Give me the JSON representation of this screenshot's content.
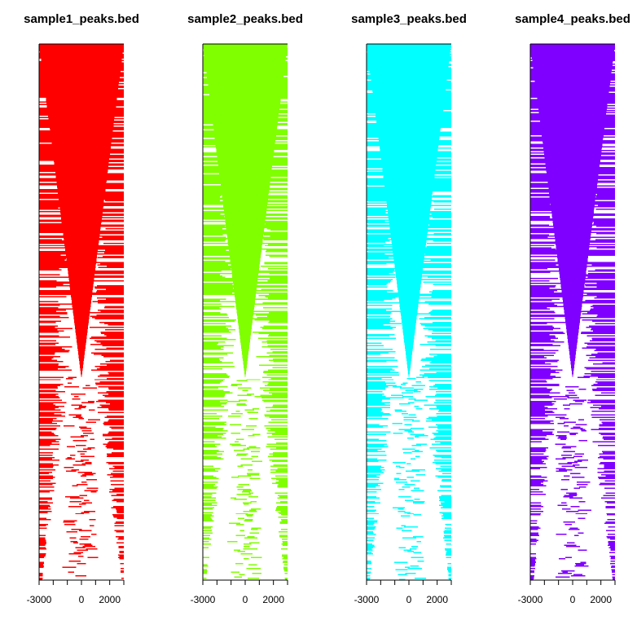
{
  "chart_data": [
    {
      "type": "heatmap",
      "title": "sample1_peaks.bed",
      "color": "#ff0000",
      "xlim": [
        -3000,
        3000
      ],
      "xticks": [
        -3000,
        -2000,
        -1000,
        0,
        1000,
        2000,
        3000
      ],
      "xtick_labels": [
        "-3000",
        "",
        "",
        "0",
        "",
        "2000",
        ""
      ],
      "row_count": 440,
      "grid": false
    },
    {
      "type": "heatmap",
      "title": "sample2_peaks.bed",
      "color": "#80ff00",
      "xlim": [
        -3000,
        3000
      ],
      "xticks": [
        -3000,
        -2000,
        -1000,
        0,
        1000,
        2000,
        3000
      ],
      "xtick_labels": [
        "-3000",
        "",
        "",
        "0",
        "",
        "2000",
        ""
      ],
      "row_count": 440,
      "grid": false
    },
    {
      "type": "heatmap",
      "title": "sample3_peaks.bed",
      "color": "#00ffff",
      "xlim": [
        -3000,
        3000
      ],
      "xticks": [
        -3000,
        -2000,
        -1000,
        0,
        1000,
        2000,
        3000
      ],
      "xtick_labels": [
        "-3000",
        "",
        "",
        "0",
        "",
        "2000",
        ""
      ],
      "row_count": 440,
      "grid": false
    },
    {
      "type": "heatmap",
      "title": "sample4_peaks.bed",
      "color": "#8000ff",
      "xlim": [
        -3000,
        3000
      ],
      "xticks": [
        -3000,
        -2000,
        -1000,
        0,
        1000,
        2000,
        3000
      ],
      "xtick_labels": [
        "-3000",
        "",
        "",
        "0",
        "",
        "2000",
        ""
      ],
      "row_count": 440,
      "grid": false
    }
  ]
}
